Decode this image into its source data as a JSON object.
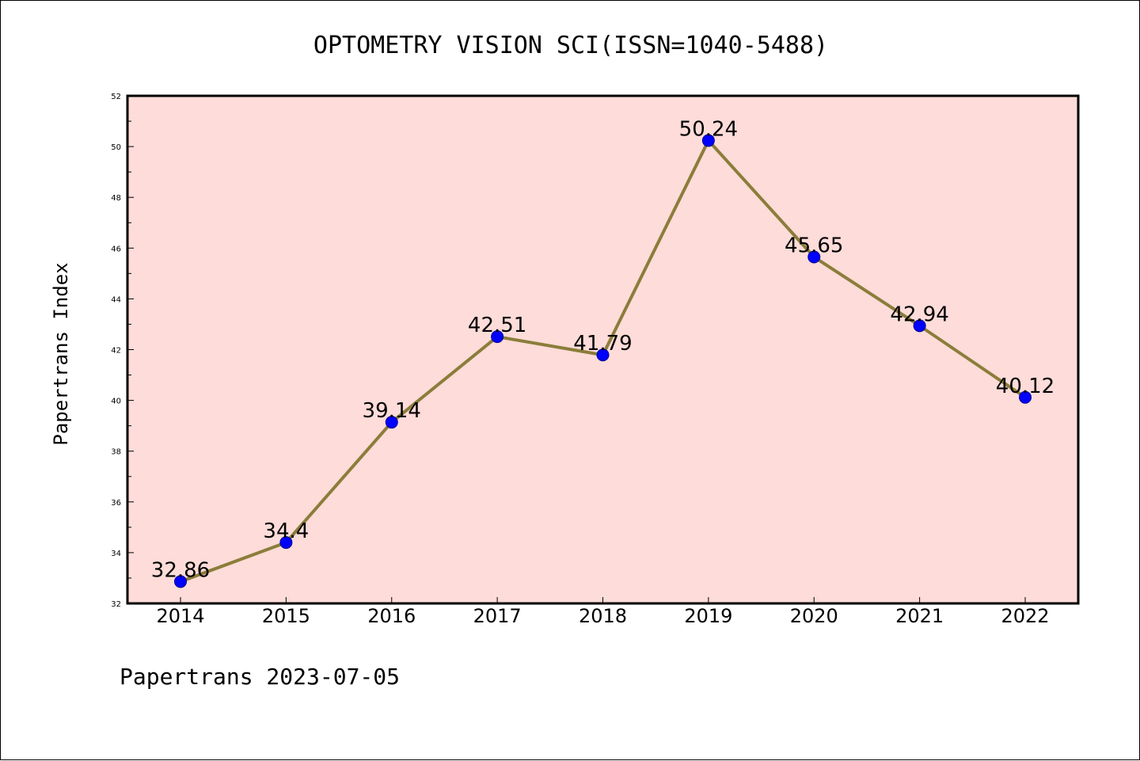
{
  "colors": {
    "plot_background": "#fddcd9",
    "line": "#8b7d3a",
    "marker": "#0000ff",
    "marker_edge": "#00008b",
    "axis": "#000000"
  },
  "footer": "Papertrans 2023-07-05",
  "chart_data": {
    "type": "line",
    "title": "OPTOMETRY VISION SCI(ISSN=1040-5488)",
    "xlabel": "",
    "ylabel": "Papertrans Index",
    "categories": [
      "2014",
      "2015",
      "2016",
      "2017",
      "2018",
      "2019",
      "2020",
      "2021",
      "2022"
    ],
    "series": [
      {
        "values": [
          32.86,
          34.4,
          39.14,
          42.51,
          41.79,
          50.24,
          45.65,
          42.94,
          40.12
        ],
        "labels": [
          "32.86",
          "34.4",
          "39.14",
          "42.51",
          "41.79",
          "50.24",
          "45.65",
          "42.94",
          "40.12"
        ]
      }
    ],
    "ylim": [
      32,
      52
    ],
    "yticks": [
      "32",
      "34",
      "36",
      "38",
      "40",
      "42",
      "44",
      "46",
      "48",
      "50",
      "52"
    ],
    "grid": false,
    "legend": "none"
  }
}
